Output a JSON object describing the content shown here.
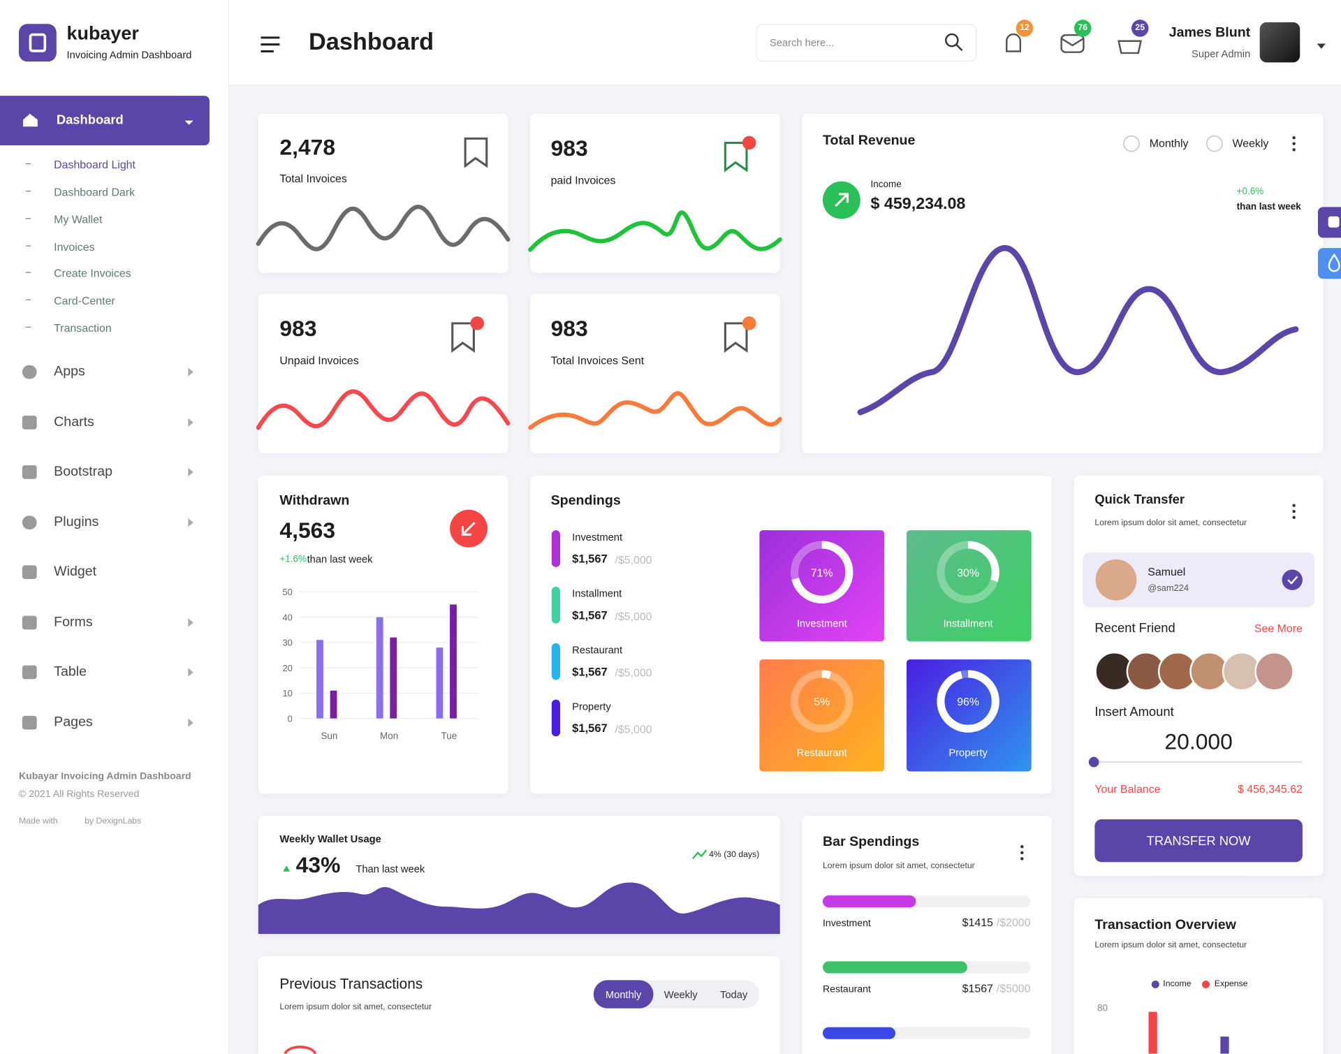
{
  "brand": {
    "name": "kubayer",
    "tagline": "Invoicing Admin Dashboard"
  },
  "header": {
    "title": "Dashboard",
    "search_placeholder": "Search here...",
    "badges": [
      12,
      76,
      25
    ],
    "user": {
      "name": "James Blunt",
      "role": "Super Admin"
    }
  },
  "sidebar": {
    "active": "Dashboard",
    "submenu": [
      "Dashboard Light",
      "Dashboard Dark",
      "My Wallet",
      "Invoices",
      "Create Invoices",
      "Card-Center",
      "Transaction"
    ],
    "menu": [
      "Apps",
      "Charts",
      "Bootstrap",
      "Plugins",
      "Widget",
      "Forms",
      "Table",
      "Pages"
    ],
    "footer": {
      "line1": "Kubayar Invoicing Admin Dashboard",
      "line2": "© 2021 All Rights Reserved",
      "made_with": "Made with",
      "by": "by DexignLabs"
    }
  },
  "stat_cards": [
    {
      "value": "2,478",
      "label": "Total Invoices"
    },
    {
      "value": "983",
      "label": "paid Invoices"
    },
    {
      "value": "983",
      "label": "Unpaid Invoices"
    },
    {
      "value": "983",
      "label": "Total Invoices Sent"
    }
  ],
  "revenue": {
    "title": "Total Revenue",
    "options": [
      "Monthly",
      "Weekly"
    ],
    "income_label": "Income",
    "income": "$ 459,234.08",
    "change": "+0.6%",
    "change_note": "than last week"
  },
  "withdrawn": {
    "title": "Withdrawn",
    "value": "4,563",
    "change": "+1.6%",
    "change_note": "than last week",
    "chart_data": {
      "type": "bar",
      "categories": [
        "Sun",
        "Mon",
        "Tue"
      ],
      "series": [
        {
          "color": "#8b6cf7",
          "values": [
            31,
            40,
            28
          ]
        },
        {
          "color": "#7a1fa2",
          "values": [
            11,
            32,
            45
          ]
        }
      ],
      "ylim": [
        0,
        50
      ],
      "yticks": [
        0,
        10,
        20,
        30,
        40,
        50
      ],
      "grid": true
    }
  },
  "spendings": {
    "title": "Spendings",
    "items": [
      {
        "name": "Investment",
        "amount": "$1,567",
        "limit": "/$5,000"
      },
      {
        "name": "Installment",
        "amount": "$1,567",
        "limit": "/$5,000"
      },
      {
        "name": "Restaurant",
        "amount": "$1,567",
        "limit": "/$5,000"
      },
      {
        "name": "Property",
        "amount": "$1,567",
        "limit": "/$5,000"
      }
    ],
    "chart_data": {
      "type": "donut",
      "categories": [
        "Investment",
        "Installment",
        "Restaurant",
        "Property"
      ],
      "values": [
        71,
        30,
        5,
        96
      ],
      "value_labels": [
        "71%",
        "30%",
        "5%",
        "96%"
      ]
    }
  },
  "quick_transfer": {
    "title": "Quick Transfer",
    "subtitle": "Lorem ipsum dolor sit amet, consectetur",
    "contact": {
      "name": "Samuel",
      "handle": "@sam224"
    },
    "recent_friend": "Recent Friend",
    "see_more": "See More",
    "insert_amount": "Insert Amount",
    "amount": "20.000",
    "balance_label": "Your Balance",
    "balance": "$ 456,345.62",
    "button": "TRANSFER NOW"
  },
  "weekly_wallet": {
    "title": "Weekly Wallet Usage",
    "value": "43%",
    "note": "Than last week",
    "trend": "4% (30 days)"
  },
  "bar_spendings": {
    "title": "Bar Spendings",
    "subtitle": "Lorem ipsum dolor sit amet, consectetur",
    "items": [
      {
        "name": "Investment",
        "amount": "$1415",
        "limit": "/$2000"
      },
      {
        "name": "Restaurant",
        "amount": "$1567",
        "limit": "/$5000"
      }
    ]
  },
  "previous_transactions": {
    "title": "Previous Transactions",
    "subtitle": "Lorem ipsum dolor sit amet, consectetur",
    "tabs": [
      "Monthly",
      "Weekly",
      "Today"
    ]
  },
  "transaction_overview": {
    "title": "Transaction Overview",
    "subtitle": "Lorem ipsum dolor sit amet, consectetur",
    "legend": [
      "Income",
      "Expense"
    ],
    "ytick": 80
  }
}
